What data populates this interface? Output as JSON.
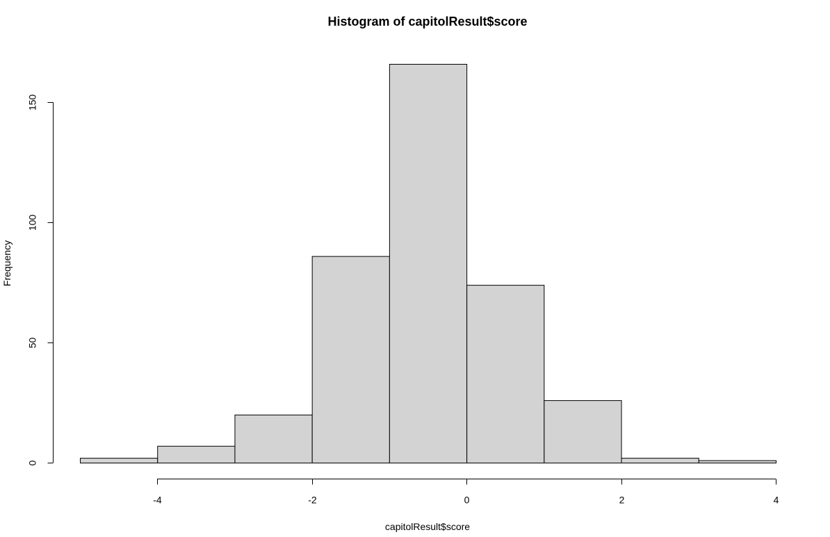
{
  "chart_data": {
    "type": "bar",
    "title": "Histogram of capitolResult$score",
    "xlabel": "capitolResult$score",
    "ylabel": "Frequency",
    "bins": [
      {
        "start": -5,
        "end": -4,
        "count": 2
      },
      {
        "start": -4,
        "end": -3,
        "count": 7
      },
      {
        "start": -3,
        "end": -2,
        "count": 20
      },
      {
        "start": -2,
        "end": -1,
        "count": 86
      },
      {
        "start": -1,
        "end": 0,
        "count": 166
      },
      {
        "start": 0,
        "end": 1,
        "count": 74
      },
      {
        "start": 1,
        "end": 2,
        "count": 26
      },
      {
        "start": 2,
        "end": 3,
        "count": 2
      },
      {
        "start": 3,
        "end": 4,
        "count": 1
      }
    ],
    "xticks": [
      -4,
      -2,
      0,
      2,
      4
    ],
    "yticks": [
      0,
      50,
      100,
      150
    ],
    "xlim": [
      -5,
      4
    ],
    "ylim": [
      0,
      166
    ],
    "bar_color": "#d3d3d3",
    "border_color": "#000000",
    "grid": false,
    "legend": "none"
  }
}
